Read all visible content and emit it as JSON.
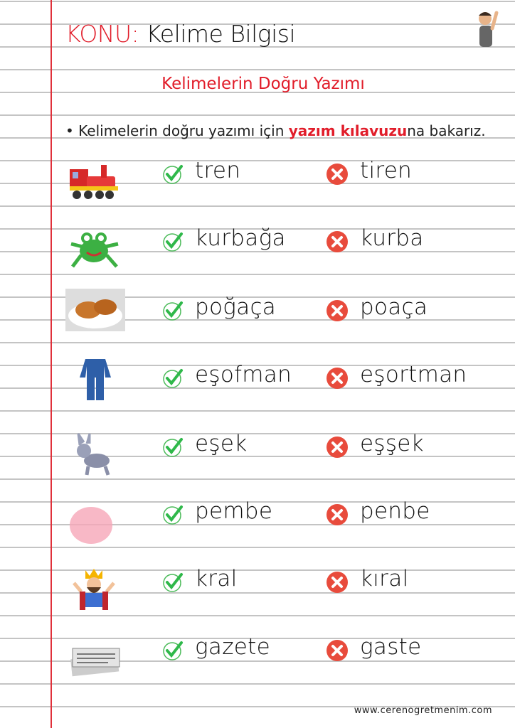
{
  "header": {
    "konu_label": "KONU:",
    "topic": "Kelime Bilgisi"
  },
  "subtitle": "Kelimelerin Doğru Yazımı",
  "rule": {
    "before": "Kelimelerin doğru yazımı için ",
    "highlight": "yazım kılavuzu",
    "after": "na bakarız."
  },
  "rows": [
    {
      "image": "train",
      "correct": "tren",
      "wrong": "tiren"
    },
    {
      "image": "frog",
      "correct": "kurbağa",
      "wrong": "kurba"
    },
    {
      "image": "pastry",
      "correct": "poğaça",
      "wrong": "poaça"
    },
    {
      "image": "tracksuit",
      "correct": "eşofman",
      "wrong": "eşortman"
    },
    {
      "image": "donkey",
      "correct": "eşek",
      "wrong": "eşşek"
    },
    {
      "image": "pink-blob",
      "correct": "pembe",
      "wrong": "penbe"
    },
    {
      "image": "king",
      "correct": "kral",
      "wrong": "kıral"
    },
    {
      "image": "newspaper",
      "correct": "gazete",
      "wrong": "gaste"
    }
  ],
  "icons": {
    "correct": "check-icon",
    "wrong": "x-circle-icon"
  },
  "colors": {
    "accent": "#e11d2a",
    "check": "#2fb84a",
    "cross": "#e84b3c",
    "margin": "#e0303a"
  },
  "footer": "www.cerenogretmenim.com"
}
